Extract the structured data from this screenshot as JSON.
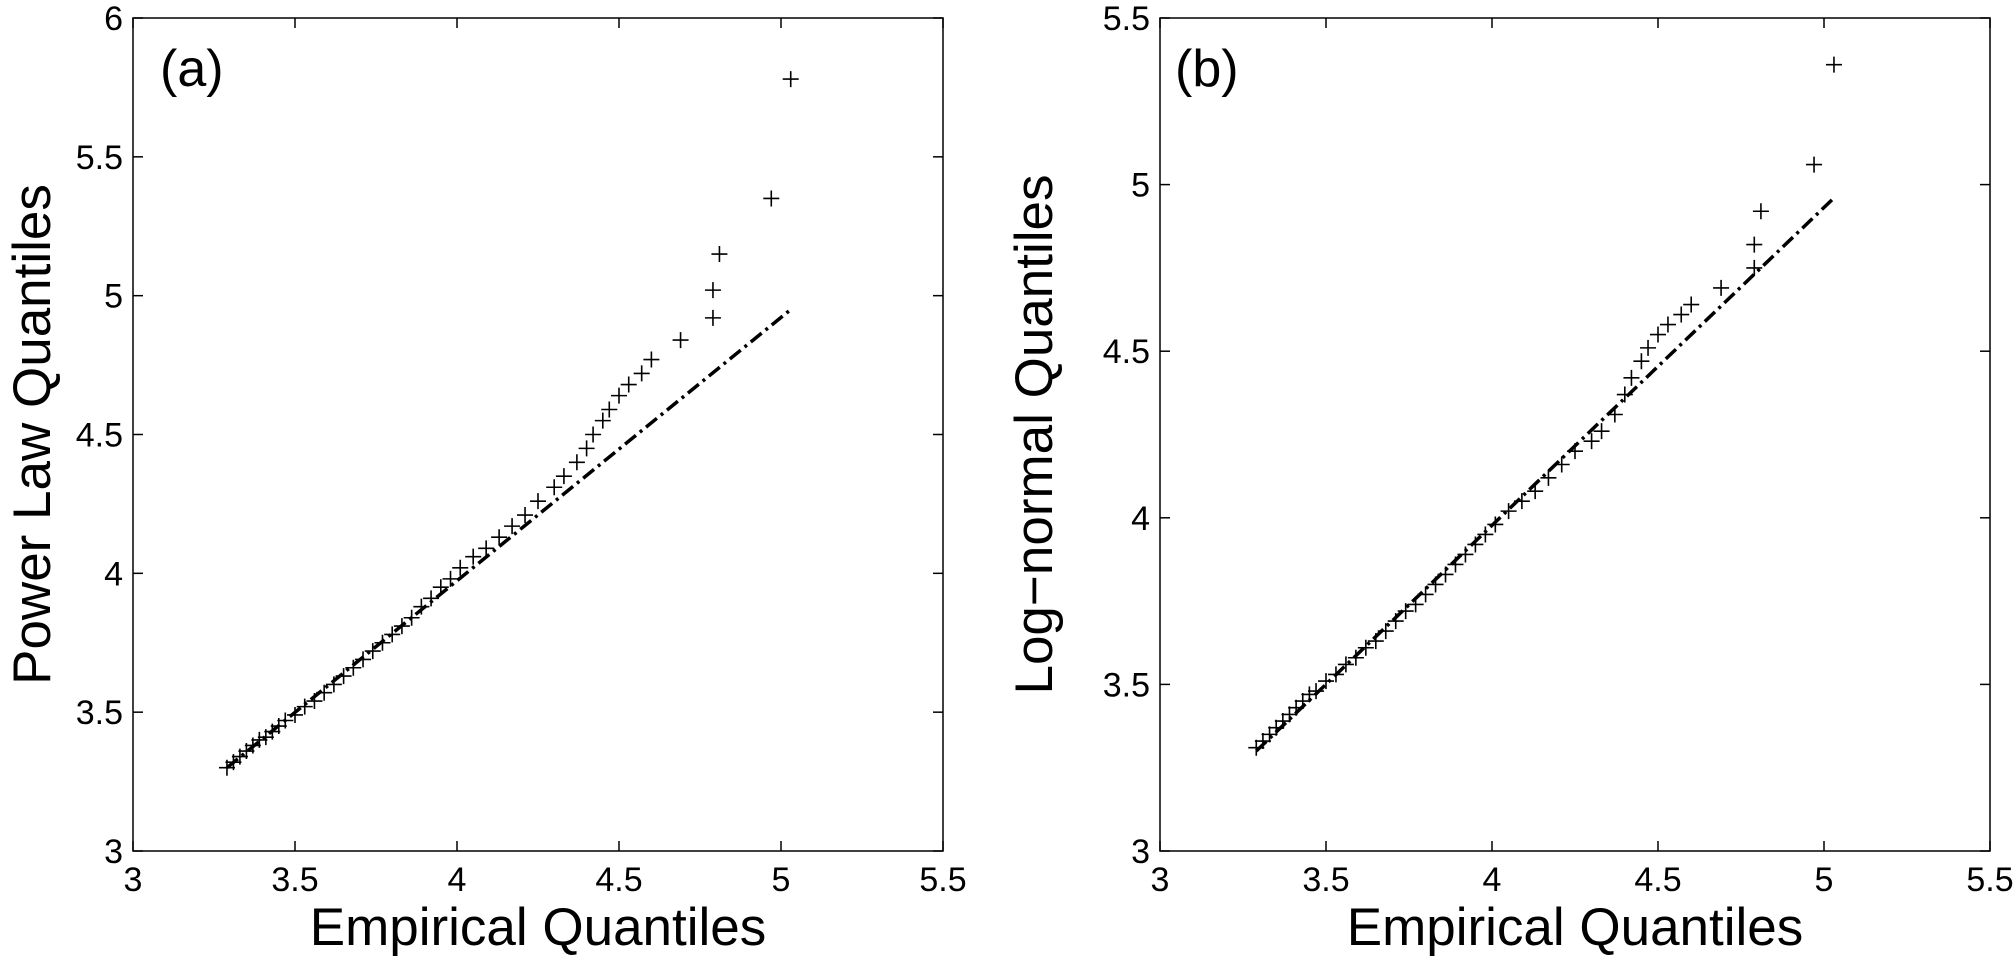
{
  "chart_data": [
    {
      "type": "scatter",
      "panel_label": "(a)",
      "xlabel": "Empirical Quantiles",
      "ylabel": "Power Law Quantiles",
      "xlim": [
        3,
        5.5
      ],
      "ylim": [
        3,
        6
      ],
      "xticks": [
        "3",
        "3.5",
        "4",
        "4.5",
        "5",
        "5.5"
      ],
      "yticks": [
        "3",
        "3.5",
        "4",
        "4.5",
        "5",
        "5.5",
        "6"
      ],
      "marker": "+",
      "grid": false,
      "series": [
        {
          "x": [
            3.29,
            3.31,
            3.33,
            3.35,
            3.37,
            3.39,
            3.41,
            3.43,
            3.45,
            3.47,
            3.5,
            3.53,
            3.56,
            3.59,
            3.62,
            3.65,
            3.68,
            3.71,
            3.74,
            3.77,
            3.8,
            3.83,
            3.86,
            3.89,
            3.92,
            3.95,
            3.98,
            4.01,
            4.05,
            4.09,
            4.13,
            4.17,
            4.21,
            4.25,
            4.3,
            4.33,
            4.37,
            4.4,
            4.42,
            4.45,
            4.47,
            4.5,
            4.53,
            4.57,
            4.6,
            4.69,
            4.79,
            4.79,
            4.81,
            4.97,
            5.03
          ],
          "y": [
            3.3,
            3.32,
            3.34,
            3.36,
            3.38,
            3.4,
            3.41,
            3.43,
            3.45,
            3.47,
            3.49,
            3.52,
            3.54,
            3.57,
            3.6,
            3.63,
            3.66,
            3.69,
            3.72,
            3.75,
            3.78,
            3.81,
            3.84,
            3.88,
            3.91,
            3.95,
            3.98,
            4.02,
            4.06,
            4.09,
            4.13,
            4.17,
            4.21,
            4.26,
            4.31,
            4.35,
            4.4,
            4.45,
            4.5,
            4.55,
            4.59,
            4.64,
            4.68,
            4.72,
            4.77,
            4.84,
            4.92,
            5.02,
            5.15,
            5.35,
            5.78
          ]
        },
        {
          "type": "line",
          "style": "dash-dot",
          "x": [
            3.29,
            5.03
          ],
          "y": [
            3.3,
            4.95
          ]
        }
      ]
    },
    {
      "type": "scatter",
      "panel_label": "(b)",
      "xlabel": "Empirical Quantiles",
      "ylabel": "Log−normal Quantiles",
      "xlim": [
        3,
        5.5
      ],
      "ylim": [
        3,
        5.5
      ],
      "xticks": [
        "3",
        "3.5",
        "4",
        "4.5",
        "5",
        "5.5"
      ],
      "yticks": [
        "3",
        "3.5",
        "4",
        "4.5",
        "5",
        "5.5"
      ],
      "marker": "+",
      "grid": false,
      "series": [
        {
          "x": [
            3.29,
            3.31,
            3.33,
            3.35,
            3.37,
            3.39,
            3.41,
            3.43,
            3.45,
            3.47,
            3.5,
            3.53,
            3.56,
            3.59,
            3.62,
            3.65,
            3.68,
            3.71,
            3.74,
            3.77,
            3.8,
            3.83,
            3.86,
            3.89,
            3.92,
            3.95,
            3.98,
            4.01,
            4.05,
            4.09,
            4.13,
            4.17,
            4.21,
            4.25,
            4.3,
            4.33,
            4.37,
            4.4,
            4.42,
            4.45,
            4.47,
            4.5,
            4.53,
            4.57,
            4.6,
            4.69,
            4.79,
            4.79,
            4.81,
            4.97,
            5.03
          ],
          "y": [
            3.31,
            3.33,
            3.35,
            3.37,
            3.39,
            3.41,
            3.43,
            3.45,
            3.47,
            3.48,
            3.51,
            3.53,
            3.56,
            3.58,
            3.61,
            3.63,
            3.66,
            3.69,
            3.72,
            3.74,
            3.77,
            3.8,
            3.83,
            3.86,
            3.89,
            3.92,
            3.95,
            3.98,
            4.02,
            4.05,
            4.08,
            4.12,
            4.16,
            4.2,
            4.23,
            4.26,
            4.31,
            4.37,
            4.42,
            4.47,
            4.51,
            4.55,
            4.58,
            4.61,
            4.64,
            4.69,
            4.75,
            4.82,
            4.92,
            5.06,
            5.36
          ]
        },
        {
          "type": "line",
          "style": "dash-dot",
          "x": [
            3.29,
            5.03
          ],
          "y": [
            3.3,
            4.96
          ]
        }
      ]
    }
  ]
}
